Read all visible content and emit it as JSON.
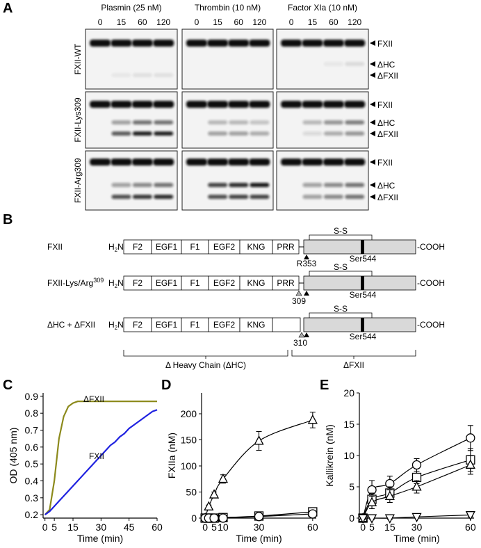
{
  "panel_labels": [
    "A",
    "B",
    "C",
    "D",
    "E"
  ],
  "blot": {
    "enzymes": [
      "Plasmin (25 nM)",
      "Thrombin (10 nM)",
      "Factor XIa (10 nM)"
    ],
    "times": [
      0,
      15,
      60,
      120
    ],
    "rows": [
      {
        "name": "FXII-WT",
        "bands": [
          "FXII",
          "ΔHC",
          "ΔFXII"
        ]
      },
      {
        "name": "FXII-Lys309",
        "bands": [
          "FXII",
          "ΔHC",
          "ΔFXII"
        ]
      },
      {
        "name": "FXII-Arg309",
        "bands": [
          "FXII",
          "ΔHC",
          "ΔFXII"
        ]
      }
    ]
  },
  "diagram": {
    "constructs": [
      {
        "name": "FXII"
      },
      {
        "name": "FXII-Lys/Arg",
        "sup": "309"
      },
      {
        "name": "ΔHC + ΔFXII"
      }
    ],
    "n_term": {
      "base": "H",
      "sub": "2",
      "rest": "N-"
    },
    "c_term": "-COOH",
    "domains": [
      "F2",
      "EGF1",
      "F1",
      "EGF2",
      "KNG",
      "PRR"
    ],
    "disulfide": "S-S",
    "cleavage_site": "R353",
    "active_site": "Ser544",
    "site_309": "309",
    "site_310": "310",
    "heavy_chain": "Δ Heavy Chain (ΔHC)",
    "light_chain": "ΔFXII"
  },
  "chart_data": [
    {
      "type": "line",
      "ylabel": "OD (405 nm)",
      "xlabel": "Time (min)",
      "x": [
        0,
        2.5,
        5,
        7.5,
        10,
        12.5,
        15,
        17.5,
        20,
        22.5,
        25,
        27.5,
        30,
        32.5,
        35,
        37.5,
        40,
        42.5,
        45,
        47.5,
        50,
        52.5,
        55,
        57.5,
        60
      ],
      "series": [
        {
          "name": "ΔFXII",
          "color": "#8c8a1c",
          "values": [
            0.2,
            0.23,
            0.4,
            0.65,
            0.78,
            0.84,
            0.86,
            0.87,
            0.87,
            0.87,
            0.87,
            0.87,
            0.87,
            0.87,
            0.87,
            0.87,
            0.87,
            0.87,
            0.87,
            0.87,
            0.87,
            0.87,
            0.87,
            0.87,
            0.87
          ]
        },
        {
          "name": "FXII",
          "color": "#1f22e0",
          "values": [
            0.2,
            0.22,
            0.25,
            0.28,
            0.31,
            0.34,
            0.37,
            0.4,
            0.43,
            0.46,
            0.49,
            0.52,
            0.55,
            0.58,
            0.61,
            0.63,
            0.66,
            0.68,
            0.71,
            0.73,
            0.75,
            0.77,
            0.79,
            0.81,
            0.82
          ]
        }
      ],
      "xlim": [
        -1,
        60
      ],
      "xticks": [
        0,
        5,
        15,
        30,
        45,
        60
      ],
      "ylim": [
        0.18,
        0.92
      ],
      "yticks": [
        0.2,
        0.3,
        0.4,
        0.5,
        0.6,
        0.7,
        0.8,
        0.9
      ]
    },
    {
      "type": "scatter",
      "ylabel": "FXIIa (nM)",
      "xlabel": "Time (min)",
      "x": [
        0,
        2,
        5,
        10,
        30,
        60
      ],
      "series": [
        {
          "marker": "triangle",
          "values": [
            0,
            22,
            45,
            75,
            148,
            188
          ],
          "errors": [
            0,
            3,
            5,
            8,
            18,
            15
          ]
        },
        {
          "marker": "square",
          "values": [
            0,
            0,
            0,
            1,
            4,
            12
          ],
          "errors": [
            0,
            0,
            0,
            1,
            2,
            3
          ]
        },
        {
          "marker": "circle",
          "values": [
            0,
            0,
            0,
            0,
            3,
            8
          ],
          "errors": [
            0,
            0,
            0,
            0,
            2,
            3
          ]
        }
      ],
      "xlim": [
        -2,
        62
      ],
      "xticks": [
        0,
        5,
        10,
        30,
        60
      ],
      "ylim": [
        0,
        240
      ],
      "yticks": [
        0,
        50,
        100,
        150,
        200
      ]
    },
    {
      "type": "scatter",
      "ylabel": "Kallikrein (nM)",
      "xlabel": "Time (min)",
      "x": [
        0,
        5,
        15,
        30,
        60
      ],
      "series": [
        {
          "marker": "circle",
          "values": [
            0,
            4.5,
            5.5,
            8.5,
            12.8
          ],
          "errors": [
            0,
            1.5,
            1.2,
            1,
            2
          ]
        },
        {
          "marker": "square",
          "values": [
            0,
            3,
            4,
            6.5,
            9.3
          ],
          "errors": [
            0,
            1,
            1,
            1,
            1.8
          ]
        },
        {
          "marker": "triangle",
          "values": [
            0,
            2.5,
            3.5,
            5,
            8.5
          ],
          "errors": [
            0,
            1,
            1,
            1,
            1.5
          ]
        },
        {
          "marker": "triangle-down",
          "values": [
            0,
            0,
            0,
            0.2,
            0.5
          ],
          "errors": [
            0,
            0.2,
            0.2,
            0.2,
            0.3
          ]
        }
      ],
      "xlim": [
        -2,
        62
      ],
      "xticks": [
        0,
        5,
        15,
        30,
        60
      ],
      "ylim": [
        0,
        20
      ],
      "yticks": [
        0,
        5,
        10,
        15,
        20
      ]
    }
  ]
}
